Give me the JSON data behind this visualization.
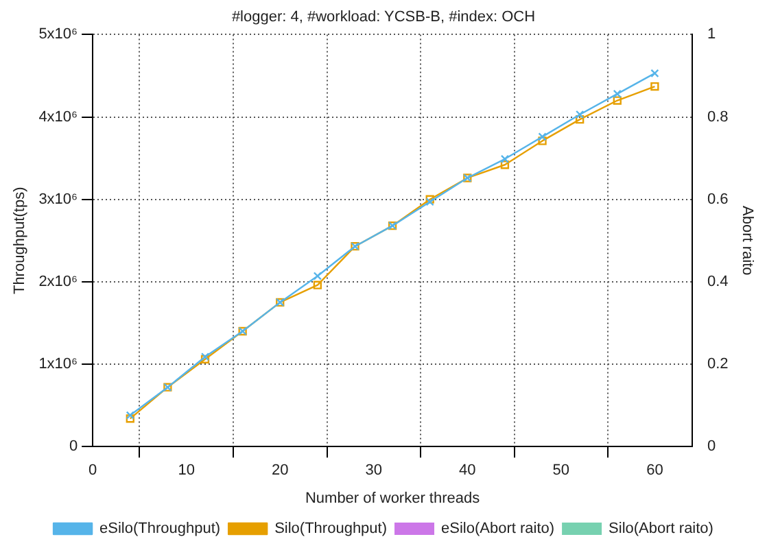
{
  "chart_data": {
    "type": "line",
    "title": "#logger: 4, #workload: YCSB-B, #index: OCH",
    "xlabel": "Number of worker threads",
    "ylabel": "Throughput(tps)",
    "y2label": "Abort raito",
    "x": [
      4,
      8,
      12,
      16,
      20,
      24,
      28,
      32,
      36,
      40,
      44,
      48,
      52,
      56,
      60
    ],
    "series": [
      {
        "name": "eSilo(Abort raito)",
        "type": "bar",
        "color": "#cc77e8",
        "values": [
          0,
          0,
          0,
          0,
          0,
          0,
          0,
          0,
          0,
          0,
          0,
          0,
          0,
          0,
          0
        ]
      },
      {
        "name": "Silo(Abort raito)",
        "type": "bar",
        "color": "#77d1b0",
        "values": [
          0,
          0,
          0,
          0,
          0,
          0,
          0,
          0,
          0,
          0,
          0,
          0,
          0,
          0,
          0
        ]
      },
      {
        "name": "eSilo(Throughput)",
        "marker": "cross",
        "color": "#56b4e9",
        "values": [
          380000,
          720000,
          1090000,
          1400000,
          1750000,
          2070000,
          2430000,
          2680000,
          2970000,
          3260000,
          3490000,
          3760000,
          4030000,
          4280000,
          4530000
        ]
      },
      {
        "name": "Silo(Throughput)",
        "marker": "square",
        "color": "#e69f00",
        "values": [
          340000,
          720000,
          1060000,
          1400000,
          1750000,
          1960000,
          2430000,
          2680000,
          3000000,
          3260000,
          3420000,
          3710000,
          3970000,
          4200000,
          4370000
        ]
      }
    ],
    "xlim": [
      0,
      64
    ],
    "xticks": [
      0,
      10,
      20,
      30,
      40,
      50,
      60
    ],
    "ylim": [
      0,
      5000000
    ],
    "yticks": [
      0,
      {
        "value": 1000000,
        "label": "1x10⁶"
      },
      {
        "value": 2000000,
        "label": "2x10⁶"
      },
      {
        "value": 3000000,
        "label": "3x10⁶"
      },
      {
        "value": 4000000,
        "label": "4x10⁶"
      },
      {
        "value": 5000000,
        "label": "5x10⁶"
      }
    ],
    "y2lim": [
      0,
      1
    ],
    "y2ticks": [
      0,
      0.2,
      0.4,
      0.6,
      0.8,
      1
    ],
    "grid": true,
    "legend": "bottom"
  }
}
